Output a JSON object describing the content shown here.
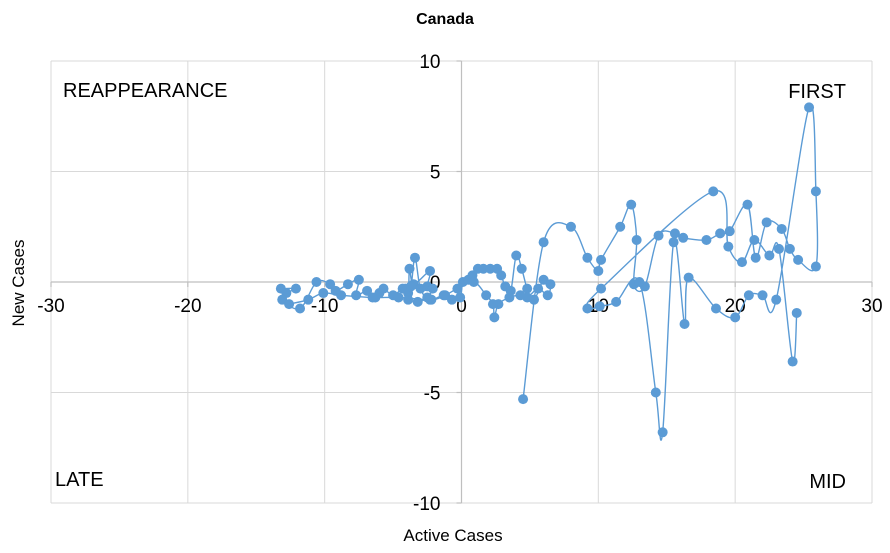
{
  "chart_data": {
    "type": "scatter",
    "title": "Canada",
    "xlabel": "Active Cases",
    "ylabel": "New Cases",
    "xlim": [
      -30,
      30
    ],
    "ylim": [
      -10,
      10
    ],
    "x_ticks": [
      "-30",
      "-20",
      "-10",
      "0",
      "10",
      "20",
      "30"
    ],
    "y_ticks": [
      "-10",
      "-5",
      "0",
      "5",
      "10"
    ],
    "grid": true,
    "quadrant_labels": {
      "top_left": "REAPPEARANCE",
      "top_right": "FIRST",
      "bottom_left": "LATE",
      "bottom_right": "MID"
    },
    "color": "#5b9bd5",
    "series": [
      {
        "points": [
          [
            -13.2,
            -0.3
          ],
          [
            -12.1,
            -0.3
          ],
          [
            -12.8,
            -0.5
          ],
          [
            -13.1,
            -0.8
          ],
          [
            -11.8,
            -1.2
          ],
          [
            -10.6,
            0.0
          ],
          [
            -9.6,
            -0.1
          ],
          [
            -9.2,
            -0.4
          ],
          [
            -8.3,
            -0.1
          ],
          [
            -7.5,
            0.1
          ],
          [
            -7.7,
            -0.6
          ],
          [
            -6.9,
            -0.4
          ],
          [
            -6.3,
            -0.7
          ],
          [
            -6.0,
            -0.5
          ],
          [
            -5.7,
            -0.3
          ],
          [
            -5.0,
            -0.6
          ],
          [
            -4.3,
            -0.3
          ],
          [
            -3.9,
            -0.5
          ],
          [
            -3.8,
            0.6
          ],
          [
            -3.5,
            -0.1
          ],
          [
            -2.3,
            0.5
          ],
          [
            -2.5,
            -0.2
          ],
          [
            -2.1,
            -0.3
          ],
          [
            -2.5,
            -0.7
          ],
          [
            -3.2,
            -0.9
          ],
          [
            -3.9,
            -0.8
          ],
          [
            -4.1,
            -0.3
          ],
          [
            -3.7,
            -0.2
          ],
          [
            -3.4,
            1.1
          ],
          [
            -3.0,
            -0.3
          ],
          [
            -2.3,
            -0.8
          ],
          [
            -1.3,
            -0.6
          ],
          [
            -0.7,
            -0.8
          ],
          [
            -0.1,
            -0.7
          ],
          [
            0.1,
            0.0
          ],
          [
            0.5,
            0.1
          ],
          [
            0.8,
            0.3
          ],
          [
            1.2,
            0.6
          ],
          [
            1.6,
            0.6
          ],
          [
            2.1,
            0.6
          ],
          [
            2.6,
            0.6
          ],
          [
            2.9,
            0.3
          ],
          [
            3.2,
            -0.2
          ],
          [
            3.6,
            -0.4
          ],
          [
            4.0,
            1.2
          ],
          [
            4.4,
            0.6
          ],
          [
            4.8,
            -0.3
          ],
          [
            5.3,
            -0.8
          ],
          [
            6.0,
            0.1
          ],
          [
            6.5,
            -0.1
          ],
          [
            6.3,
            -0.6
          ],
          [
            5.6,
            -0.3
          ],
          [
            4.8,
            -0.7
          ],
          [
            4.3,
            -0.6
          ],
          [
            3.5,
            -0.7
          ],
          [
            2.7,
            -1.0
          ],
          [
            2.4,
            -1.6
          ],
          [
            2.3,
            -1.0
          ],
          [
            1.8,
            -0.6
          ],
          [
            0.9,
            0.0
          ],
          [
            -0.3,
            -0.3
          ],
          [
            -1.2,
            -0.6
          ],
          [
            -2.2,
            -0.8
          ],
          [
            -4.6,
            -0.7
          ],
          [
            -6.5,
            -0.7
          ],
          [
            -8.8,
            -0.6
          ],
          [
            -10.1,
            -0.5
          ],
          [
            -11.2,
            -0.8
          ],
          [
            -12.6,
            -1.0
          ]
        ]
      },
      {
        "points": [
          [
            4.5,
            -5.3
          ],
          [
            6.0,
            1.8
          ],
          [
            8.0,
            2.5
          ],
          [
            9.2,
            1.1
          ],
          [
            10.0,
            0.5
          ],
          [
            10.2,
            1.0
          ],
          [
            11.6,
            2.5
          ],
          [
            12.4,
            3.5
          ],
          [
            12.8,
            1.9
          ],
          [
            12.6,
            -0.1
          ],
          [
            13.4,
            -0.2
          ],
          [
            14.4,
            2.1
          ],
          [
            15.6,
            2.2
          ],
          [
            16.2,
            2.0
          ],
          [
            17.9,
            1.9
          ],
          [
            18.9,
            2.2
          ],
          [
            19.6,
            2.3
          ],
          [
            20.9,
            3.5
          ],
          [
            21.5,
            1.1
          ],
          [
            22.3,
            2.7
          ],
          [
            23.4,
            2.4
          ],
          [
            24.0,
            1.5
          ],
          [
            24.6,
            1.0
          ],
          [
            25.9,
            0.7
          ],
          [
            25.9,
            4.1
          ],
          [
            25.4,
            7.9
          ],
          [
            23.0,
            -0.8
          ],
          [
            22.0,
            -0.6
          ],
          [
            21.0,
            -0.6
          ],
          [
            20.0,
            -1.6
          ],
          [
            18.6,
            -1.2
          ],
          [
            16.6,
            0.2
          ],
          [
            16.3,
            -1.9
          ],
          [
            15.5,
            1.8
          ],
          [
            14.7,
            -6.8
          ],
          [
            14.2,
            -5.0
          ],
          [
            13.0,
            0.0
          ],
          [
            11.3,
            -0.9
          ],
          [
            10.1,
            -1.1
          ],
          [
            9.2,
            -1.2
          ],
          [
            10.2,
            -0.3
          ],
          [
            18.4,
            4.1
          ],
          [
            19.5,
            1.6
          ],
          [
            20.5,
            0.9
          ],
          [
            21.4,
            1.9
          ],
          [
            22.5,
            1.2
          ],
          [
            23.2,
            1.5
          ],
          [
            24.2,
            -3.6
          ],
          [
            24.5,
            -1.4
          ]
        ]
      }
    ]
  }
}
